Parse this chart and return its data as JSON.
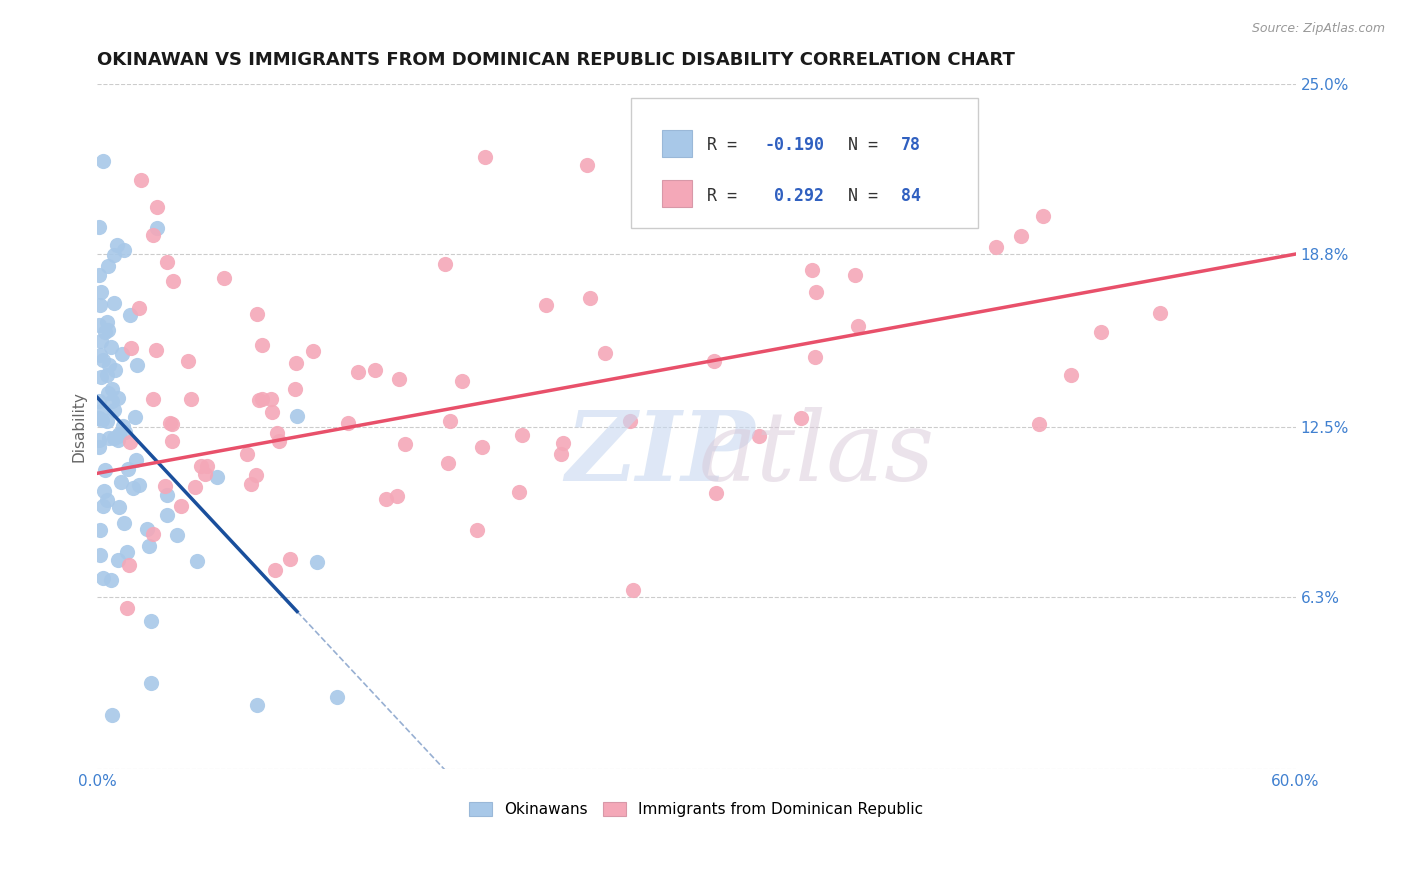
{
  "title": "OKINAWAN VS IMMIGRANTS FROM DOMINICAN REPUBLIC DISABILITY CORRELATION CHART",
  "source": "Source: ZipAtlas.com",
  "ylabel": "Disability",
  "xlim": [
    0.0,
    0.6
  ],
  "ylim": [
    0.0,
    0.25
  ],
  "y_tick_positions": [
    0.0,
    0.063,
    0.125,
    0.188,
    0.25
  ],
  "y_tick_labels": [
    "",
    "6.3%",
    "12.5%",
    "18.8%",
    "25.0%"
  ],
  "x_tick_positions": [
    0.0,
    0.12,
    0.24,
    0.36,
    0.48,
    0.6
  ],
  "x_tick_labels": [
    "0.0%",
    "",
    "",
    "",
    "",
    "60.0%"
  ],
  "okinawan_color": "#a8c8e8",
  "dominican_color": "#f4a8b8",
  "trendline_ok_color": "#1a4f9c",
  "trendline_dom_color": "#e8506a",
  "watermark_zip_color": "#c8d8f0",
  "watermark_atlas_color": "#d8c8d8",
  "tick_color": "#4080d0",
  "title_fontsize": 13,
  "label_fontsize": 11,
  "tick_fontsize": 11,
  "scatter_size": 120,
  "background_color": "#ffffff",
  "grid_color": "#cccccc",
  "legend_text_color_dark": "#333333",
  "legend_text_color_blue": "#3060c0"
}
